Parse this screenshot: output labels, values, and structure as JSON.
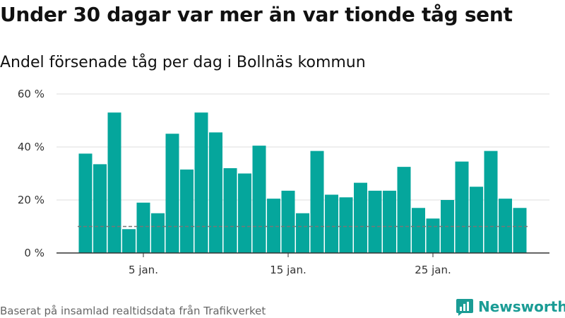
{
  "title": "Under 30 dagar var mer än var tionde tåg sent",
  "subtitle": "Andel försenade tåg per dag i Bollnäs kommun",
  "footer": "Baserat på insamlad realtidsdata från Trafikverket",
  "brand": "Newsworthy",
  "colors": {
    "bar": "#05a69c",
    "grid": "#dddddd",
    "axis": "#333333",
    "reference": "#777777",
    "brand": "#1a9c95"
  },
  "chart_data": {
    "type": "bar",
    "x": [
      1,
      2,
      3,
      4,
      5,
      6,
      7,
      8,
      9,
      10,
      11,
      12,
      13,
      14,
      15,
      16,
      17,
      18,
      19,
      20,
      21,
      22,
      23,
      24,
      25,
      26,
      27,
      28,
      29,
      30,
      31
    ],
    "values": [
      37.5,
      33.5,
      53,
      9,
      19,
      15,
      45,
      31.5,
      53,
      45.5,
      32,
      30,
      40.5,
      20.5,
      23.5,
      15,
      38.5,
      22,
      21,
      26.5,
      23.5,
      23.5,
      32.5,
      17,
      13,
      20,
      34.5,
      25,
      38.5,
      20.5,
      17
    ],
    "reference_line": 10,
    "ylim": [
      0,
      60
    ],
    "yticks": [
      0,
      20,
      40,
      60
    ],
    "ytick_labels": [
      "0 %",
      "20 %",
      "40 %",
      "60 %"
    ],
    "xticks": [
      5,
      15,
      25
    ],
    "xtick_labels": [
      "5 jan.",
      "15 jan.",
      "25 jan."
    ],
    "xlabel": "",
    "ylabel": "",
    "grid": true
  }
}
